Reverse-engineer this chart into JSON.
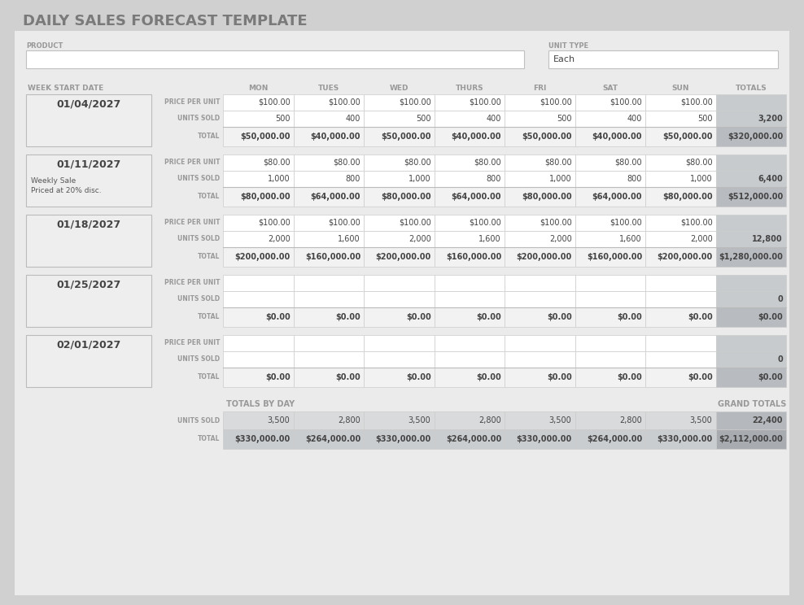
{
  "title": "DAILY SALES FORECAST TEMPLATE",
  "days": [
    "MON",
    "TUES",
    "WED",
    "THURS",
    "FRI",
    "SAT",
    "SUN",
    "TOTALS"
  ],
  "weeks": [
    {
      "date": "01/04/2027",
      "note1": "",
      "note2": "",
      "price_per_unit": [
        "$100.00",
        "$100.00",
        "$100.00",
        "$100.00",
        "$100.00",
        "$100.00",
        "$100.00",
        ""
      ],
      "units_sold": [
        "500",
        "400",
        "500",
        "400",
        "500",
        "400",
        "500",
        "3,200"
      ],
      "total": [
        "$50,000.00",
        "$40,000.00",
        "$50,000.00",
        "$40,000.00",
        "$50,000.00",
        "$40,000.00",
        "$50,000.00",
        "$320,000.00"
      ]
    },
    {
      "date": "01/11/2027",
      "note1": "Weekly Sale",
      "note2": "Priced at 20% disc.",
      "price_per_unit": [
        "$80.00",
        "$80.00",
        "$80.00",
        "$80.00",
        "$80.00",
        "$80.00",
        "$80.00",
        ""
      ],
      "units_sold": [
        "1,000",
        "800",
        "1,000",
        "800",
        "1,000",
        "800",
        "1,000",
        "6,400"
      ],
      "total": [
        "$80,000.00",
        "$64,000.00",
        "$80,000.00",
        "$64,000.00",
        "$80,000.00",
        "$64,000.00",
        "$80,000.00",
        "$512,000.00"
      ]
    },
    {
      "date": "01/18/2027",
      "note1": "",
      "note2": "",
      "price_per_unit": [
        "$100.00",
        "$100.00",
        "$100.00",
        "$100.00",
        "$100.00",
        "$100.00",
        "$100.00",
        ""
      ],
      "units_sold": [
        "2,000",
        "1,600",
        "2,000",
        "1,600",
        "2,000",
        "1,600",
        "2,000",
        "12,800"
      ],
      "total": [
        "$200,000.00",
        "$160,000.00",
        "$200,000.00",
        "$160,000.00",
        "$200,000.00",
        "$160,000.00",
        "$200,000.00",
        "$1,280,000.00"
      ]
    },
    {
      "date": "01/25/2027",
      "note1": "",
      "note2": "",
      "price_per_unit": [
        "",
        "",
        "",
        "",
        "",
        "",
        "",
        ""
      ],
      "units_sold": [
        "",
        "",
        "",
        "",
        "",
        "",
        "",
        "0"
      ],
      "total": [
        "$0.00",
        "$0.00",
        "$0.00",
        "$0.00",
        "$0.00",
        "$0.00",
        "$0.00",
        "$0.00"
      ]
    },
    {
      "date": "02/01/2027",
      "note1": "",
      "note2": "",
      "price_per_unit": [
        "",
        "",
        "",
        "",
        "",
        "",
        "",
        ""
      ],
      "units_sold": [
        "",
        "",
        "",
        "",
        "",
        "",
        "",
        "0"
      ],
      "total": [
        "$0.00",
        "$0.00",
        "$0.00",
        "$0.00",
        "$0.00",
        "$0.00",
        "$0.00",
        "$0.00"
      ]
    }
  ],
  "totals_by_day_units": [
    "3,500",
    "2,800",
    "3,500",
    "2,800",
    "3,500",
    "2,800",
    "3,500",
    "22,400"
  ],
  "totals_by_day_total": [
    "$330,000.00",
    "$264,000.00",
    "$330,000.00",
    "$264,000.00",
    "$330,000.00",
    "$264,000.00",
    "$330,000.00",
    "$2,112,000.00"
  ],
  "bg_outer": "#d0d0d0",
  "bg_panel": "#ebebeb",
  "white": "#ffffff",
  "col_header_color": "#999999",
  "dark_text": "#444444",
  "date_cell_bg": "#eeeeee",
  "totals_col_unit_bg": "#c8cbce",
  "totals_col_total_bg": "#b8bbbf",
  "total_row_bg": "#f2f2f2",
  "totals_day_unit_bg": "#d8dadc",
  "totals_day_total_bg": "#cacdd0",
  "grand_total_unit_bg": "#b5b8bc",
  "grand_total_total_bg": "#a8abaf"
}
